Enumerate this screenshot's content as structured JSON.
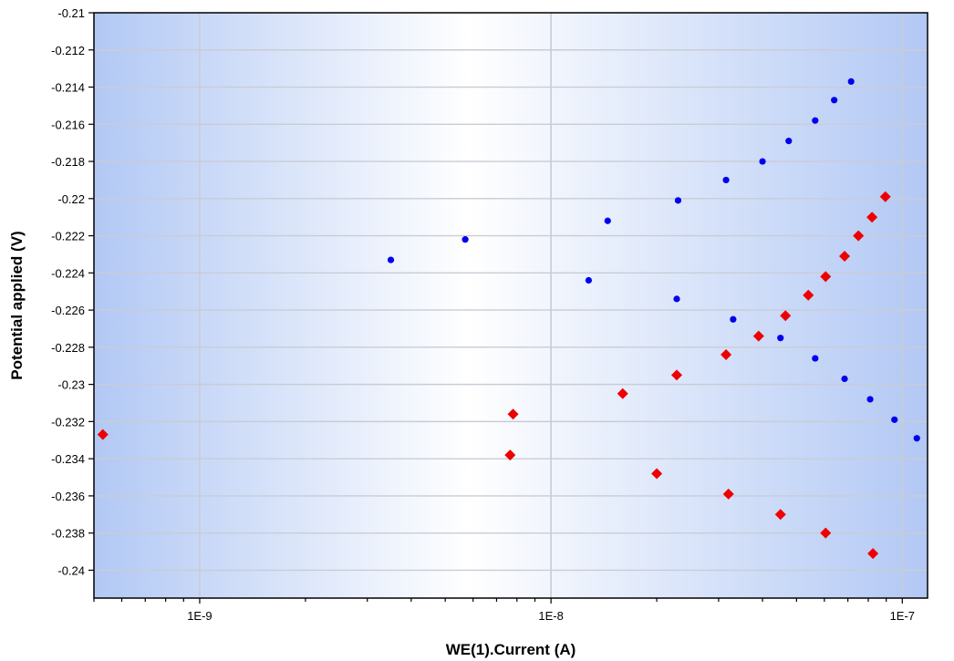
{
  "chart_data": {
    "type": "scatter",
    "xlabel": "WE(1).Current (A)",
    "ylabel": "Potential applied (V)",
    "xscale": "log",
    "xlim": [
      5e-10,
      1.18e-07
    ],
    "ylim": [
      -0.2415,
      -0.21
    ],
    "x_ticks": [
      1e-09,
      1e-08,
      1e-07
    ],
    "x_tick_labels": [
      "1E-9",
      "1E-8",
      "1E-7"
    ],
    "y_ticks": [
      -0.21,
      -0.212,
      -0.214,
      -0.216,
      -0.218,
      -0.22,
      -0.222,
      -0.224,
      -0.226,
      -0.228,
      -0.23,
      -0.232,
      -0.234,
      -0.236,
      -0.238,
      -0.24
    ],
    "y_tick_labels": [
      "-0.21",
      "-0.212",
      "-0.214",
      "-0.216",
      "-0.218",
      "-0.22",
      "-0.222",
      "-0.224",
      "-0.226",
      "-0.228",
      "-0.23",
      "-0.232",
      "-0.234",
      "-0.236",
      "-0.238",
      "-0.24"
    ],
    "grid": true,
    "series": [
      {
        "marker": "circle",
        "color": "#0000ee",
        "points": [
          [
            3.5e-09,
            -0.2233
          ],
          [
            5.7e-09,
            -0.2222
          ],
          [
            1.45e-08,
            -0.2212
          ],
          [
            2.3e-08,
            -0.2201
          ],
          [
            3.15e-08,
            -0.219
          ],
          [
            4e-08,
            -0.218
          ],
          [
            4.75e-08,
            -0.2169
          ],
          [
            5.65e-08,
            -0.2158
          ],
          [
            6.4e-08,
            -0.2147
          ],
          [
            7.15e-08,
            -0.2137
          ],
          [
            1.28e-08,
            -0.2244
          ],
          [
            2.28e-08,
            -0.2254
          ],
          [
            3.3e-08,
            -0.2265
          ],
          [
            4.5e-08,
            -0.2275
          ],
          [
            5.65e-08,
            -0.2286
          ],
          [
            6.85e-08,
            -0.2297
          ],
          [
            8.1e-08,
            -0.2308
          ],
          [
            9.5e-08,
            -0.2319
          ],
          [
            1.1e-07,
            -0.2329
          ]
        ]
      },
      {
        "marker": "diamond",
        "color": "#ee0000",
        "points": [
          [
            5.3e-10,
            -0.2327
          ],
          [
            7.8e-09,
            -0.2316
          ],
          [
            1.6e-08,
            -0.2305
          ],
          [
            2.28e-08,
            -0.2295
          ],
          [
            3.15e-08,
            -0.2284
          ],
          [
            3.9e-08,
            -0.2274
          ],
          [
            4.65e-08,
            -0.2263
          ],
          [
            5.4e-08,
            -0.2252
          ],
          [
            6.05e-08,
            -0.2242
          ],
          [
            6.85e-08,
            -0.2231
          ],
          [
            7.5e-08,
            -0.222
          ],
          [
            8.2e-08,
            -0.221
          ],
          [
            8.95e-08,
            -0.2199
          ],
          [
            7.65e-09,
            -0.2338
          ],
          [
            2e-08,
            -0.2348
          ],
          [
            3.2e-08,
            -0.2359
          ],
          [
            4.5e-08,
            -0.237
          ],
          [
            6.05e-08,
            -0.238
          ],
          [
            8.25e-08,
            -0.2391
          ]
        ]
      }
    ]
  }
}
